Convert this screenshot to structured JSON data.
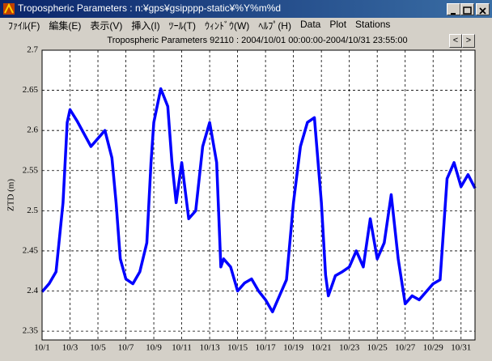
{
  "window": {
    "title": "Tropospheric Parameters : n:¥gps¥gsipppp-static¥%Y%m%d"
  },
  "menu": [
    "ﾌｧｲﾙ(F)",
    "編集(E)",
    "表示(V)",
    "挿入(I)",
    "ﾂｰﾙ(T)",
    "ｳｨﾝﾄﾞｳ(W)",
    "ﾍﾙﾌﾟ(H)",
    "Data",
    "Plot",
    "Stations"
  ],
  "buttons": [
    "<",
    ">"
  ],
  "chart_data": {
    "type": "line",
    "title": "Tropospheric Parameters 92110 : 2004/10/01 00:00:00-2004/10/31 23:55:00",
    "y_label": "ZTD (m)",
    "x": [
      0,
      0.5,
      1,
      1.5,
      1.8,
      2,
      2.5,
      3,
      3.5,
      4,
      4.5,
      5,
      5.3,
      5.6,
      6,
      6.5,
      7,
      7.5,
      7.8,
      8,
      8.5,
      9,
      9.3,
      9.6,
      10,
      10.5,
      11,
      11.5,
      12,
      12.5,
      12.8,
      13,
      13.5,
      14,
      14.5,
      15,
      15.5,
      16,
      16.5,
      17,
      17.5,
      18,
      18.5,
      19,
      19.5,
      20,
      20.3,
      20.5,
      21,
      21.5,
      22,
      22.5,
      23,
      23.5,
      24,
      24.5,
      25,
      25.5,
      26,
      26.5,
      27,
      27.5,
      28,
      28.5,
      29,
      29.5,
      30,
      30.5,
      31
    ],
    "series": [
      {
        "name": "ZTD",
        "color": "#0000ff",
        "values": [
          2.399,
          2.409,
          2.424,
          2.51,
          2.61,
          2.626,
          2.612,
          2.596,
          2.58,
          2.59,
          2.6,
          2.566,
          2.51,
          2.44,
          2.415,
          2.409,
          2.424,
          2.46,
          2.56,
          2.61,
          2.652,
          2.63,
          2.56,
          2.51,
          2.56,
          2.49,
          2.5,
          2.58,
          2.61,
          2.56,
          2.43,
          2.44,
          2.43,
          2.4,
          2.41,
          2.415,
          2.4,
          2.389,
          2.374,
          2.394,
          2.414,
          2.51,
          2.58,
          2.61,
          2.616,
          2.51,
          2.42,
          2.394,
          2.419,
          2.424,
          2.43,
          2.45,
          2.43,
          2.49,
          2.44,
          2.46,
          2.52,
          2.44,
          2.384,
          2.394,
          2.389,
          2.399,
          2.409,
          2.414,
          2.54,
          2.56,
          2.53,
          2.545,
          2.528
        ]
      }
    ],
    "xlim": [
      0,
      31
    ],
    "xticks": [
      {
        "value": 0,
        "label": "10/1"
      },
      {
        "value": 2,
        "label": "10/3"
      },
      {
        "value": 4,
        "label": "10/5"
      },
      {
        "value": 6,
        "label": "10/7"
      },
      {
        "value": 8,
        "label": "10/9"
      },
      {
        "value": 10,
        "label": "10/11"
      },
      {
        "value": 12,
        "label": "10/13"
      },
      {
        "value": 14,
        "label": "10/15"
      },
      {
        "value": 16,
        "label": "10/17"
      },
      {
        "value": 18,
        "label": "10/19"
      },
      {
        "value": 20,
        "label": "10/21"
      },
      {
        "value": 22,
        "label": "10/23"
      },
      {
        "value": 24,
        "label": "10/25"
      },
      {
        "value": 26,
        "label": "10/27"
      },
      {
        "value": 28,
        "label": "10/29"
      },
      {
        "value": 30,
        "label": "10/31"
      }
    ],
    "ylim": [
      2.339,
      2.7
    ],
    "yticks": [
      2.35,
      2.4,
      2.45,
      2.5,
      2.55,
      2.6,
      2.65,
      2.7
    ],
    "grid": true
  }
}
